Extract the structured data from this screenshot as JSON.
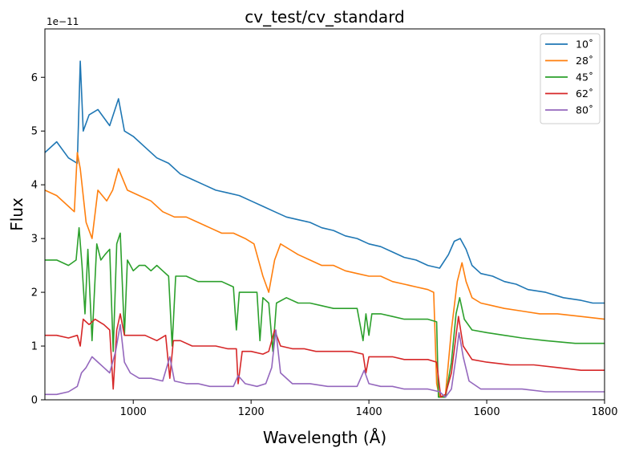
{
  "chart_data": {
    "type": "line",
    "title": "cv_test/cv_standard",
    "xlabel": "Wavelength (Å)",
    "ylabel": "Flux",
    "xlim": [
      850,
      1800
    ],
    "ylim": [
      0,
      6.9
    ],
    "y_scale_label": "1e−11",
    "xticks": [
      "1000",
      "1200",
      "1400",
      "1600",
      "1800"
    ],
    "xtick_values": [
      1000,
      1200,
      1400,
      1600,
      1800
    ],
    "yticks": [
      "0",
      "1",
      "2",
      "3",
      "4",
      "5",
      "6"
    ],
    "ytick_values": [
      0,
      1,
      2,
      3,
      4,
      5,
      6
    ],
    "grid": false,
    "legend_position": "top-right",
    "series": [
      {
        "name": "10˚",
        "color": "#1f77b4",
        "points": [
          [
            850,
            4.6
          ],
          [
            870,
            4.8
          ],
          [
            890,
            4.5
          ],
          [
            905,
            4.4
          ],
          [
            910,
            6.3
          ],
          [
            915,
            5.0
          ],
          [
            925,
            5.3
          ],
          [
            940,
            5.4
          ],
          [
            960,
            5.1
          ],
          [
            975,
            5.6
          ],
          [
            985,
            5.0
          ],
          [
            1000,
            4.9
          ],
          [
            1020,
            4.7
          ],
          [
            1040,
            4.5
          ],
          [
            1060,
            4.4
          ],
          [
            1080,
            4.2
          ],
          [
            1100,
            4.1
          ],
          [
            1120,
            4.0
          ],
          [
            1140,
            3.9
          ],
          [
            1160,
            3.85
          ],
          [
            1180,
            3.8
          ],
          [
            1200,
            3.7
          ],
          [
            1220,
            3.6
          ],
          [
            1240,
            3.5
          ],
          [
            1260,
            3.4
          ],
          [
            1280,
            3.35
          ],
          [
            1300,
            3.3
          ],
          [
            1320,
            3.2
          ],
          [
            1340,
            3.15
          ],
          [
            1360,
            3.05
          ],
          [
            1380,
            3.0
          ],
          [
            1400,
            2.9
          ],
          [
            1420,
            2.85
          ],
          [
            1440,
            2.75
          ],
          [
            1460,
            2.65
          ],
          [
            1480,
            2.6
          ],
          [
            1500,
            2.5
          ],
          [
            1520,
            2.45
          ],
          [
            1535,
            2.7
          ],
          [
            1545,
            2.95
          ],
          [
            1555,
            3.0
          ],
          [
            1565,
            2.8
          ],
          [
            1575,
            2.5
          ],
          [
            1590,
            2.35
          ],
          [
            1610,
            2.3
          ],
          [
            1630,
            2.2
          ],
          [
            1650,
            2.15
          ],
          [
            1670,
            2.05
          ],
          [
            1700,
            2.0
          ],
          [
            1730,
            1.9
          ],
          [
            1760,
            1.85
          ],
          [
            1780,
            1.8
          ],
          [
            1800,
            1.8
          ]
        ]
      },
      {
        "name": "28˚",
        "color": "#ff7f0e",
        "points": [
          [
            850,
            3.9
          ],
          [
            870,
            3.8
          ],
          [
            890,
            3.6
          ],
          [
            900,
            3.5
          ],
          [
            905,
            4.6
          ],
          [
            910,
            4.3
          ],
          [
            920,
            3.3
          ],
          [
            930,
            3.0
          ],
          [
            940,
            3.9
          ],
          [
            955,
            3.7
          ],
          [
            965,
            3.9
          ],
          [
            975,
            4.3
          ],
          [
            990,
            3.9
          ],
          [
            1010,
            3.8
          ],
          [
            1030,
            3.7
          ],
          [
            1050,
            3.5
          ],
          [
            1070,
            3.4
          ],
          [
            1090,
            3.4
          ],
          [
            1110,
            3.3
          ],
          [
            1130,
            3.2
          ],
          [
            1150,
            3.1
          ],
          [
            1170,
            3.1
          ],
          [
            1190,
            3.0
          ],
          [
            1205,
            2.9
          ],
          [
            1220,
            2.3
          ],
          [
            1230,
            2.0
          ],
          [
            1240,
            2.6
          ],
          [
            1250,
            2.9
          ],
          [
            1265,
            2.8
          ],
          [
            1280,
            2.7
          ],
          [
            1300,
            2.6
          ],
          [
            1320,
            2.5
          ],
          [
            1340,
            2.5
          ],
          [
            1360,
            2.4
          ],
          [
            1380,
            2.35
          ],
          [
            1400,
            2.3
          ],
          [
            1420,
            2.3
          ],
          [
            1440,
            2.2
          ],
          [
            1460,
            2.15
          ],
          [
            1480,
            2.1
          ],
          [
            1500,
            2.05
          ],
          [
            1510,
            2.0
          ],
          [
            1515,
            0.3
          ],
          [
            1520,
            0.05
          ],
          [
            1530,
            0.1
          ],
          [
            1540,
            1.3
          ],
          [
            1550,
            2.2
          ],
          [
            1558,
            2.55
          ],
          [
            1565,
            2.2
          ],
          [
            1575,
            1.9
          ],
          [
            1590,
            1.8
          ],
          [
            1610,
            1.75
          ],
          [
            1630,
            1.7
          ],
          [
            1660,
            1.65
          ],
          [
            1690,
            1.6
          ],
          [
            1720,
            1.6
          ],
          [
            1760,
            1.55
          ],
          [
            1800,
            1.5
          ]
        ]
      },
      {
        "name": "45˚",
        "color": "#2ca02c",
        "points": [
          [
            850,
            2.6
          ],
          [
            870,
            2.6
          ],
          [
            890,
            2.5
          ],
          [
            903,
            2.6
          ],
          [
            908,
            3.2
          ],
          [
            913,
            2.5
          ],
          [
            918,
            1.6
          ],
          [
            923,
            2.8
          ],
          [
            930,
            1.1
          ],
          [
            938,
            2.9
          ],
          [
            945,
            2.6
          ],
          [
            952,
            2.7
          ],
          [
            960,
            2.8
          ],
          [
            966,
            0.9
          ],
          [
            972,
            2.9
          ],
          [
            978,
            3.1
          ],
          [
            985,
            1.2
          ],
          [
            990,
            2.6
          ],
          [
            1000,
            2.4
          ],
          [
            1010,
            2.5
          ],
          [
            1020,
            2.5
          ],
          [
            1030,
            2.4
          ],
          [
            1040,
            2.5
          ],
          [
            1050,
            2.4
          ],
          [
            1060,
            2.3
          ],
          [
            1066,
            1.0
          ],
          [
            1072,
            2.3
          ],
          [
            1090,
            2.3
          ],
          [
            1110,
            2.2
          ],
          [
            1130,
            2.2
          ],
          [
            1150,
            2.2
          ],
          [
            1170,
            2.1
          ],
          [
            1175,
            1.3
          ],
          [
            1180,
            2.0
          ],
          [
            1200,
            2.0
          ],
          [
            1210,
            2.0
          ],
          [
            1215,
            1.1
          ],
          [
            1220,
            1.9
          ],
          [
            1230,
            1.8
          ],
          [
            1237,
            0.9
          ],
          [
            1243,
            1.8
          ],
          [
            1260,
            1.9
          ],
          [
            1280,
            1.8
          ],
          [
            1300,
            1.8
          ],
          [
            1320,
            1.75
          ],
          [
            1340,
            1.7
          ],
          [
            1360,
            1.7
          ],
          [
            1380,
            1.7
          ],
          [
            1390,
            1.1
          ],
          [
            1395,
            1.6
          ],
          [
            1400,
            1.2
          ],
          [
            1405,
            1.6
          ],
          [
            1420,
            1.6
          ],
          [
            1440,
            1.55
          ],
          [
            1460,
            1.5
          ],
          [
            1480,
            1.5
          ],
          [
            1500,
            1.5
          ],
          [
            1515,
            1.45
          ],
          [
            1518,
            0.05
          ],
          [
            1530,
            0.05
          ],
          [
            1540,
            0.7
          ],
          [
            1548,
            1.6
          ],
          [
            1554,
            1.9
          ],
          [
            1562,
            1.5
          ],
          [
            1575,
            1.3
          ],
          [
            1600,
            1.25
          ],
          [
            1630,
            1.2
          ],
          [
            1660,
            1.15
          ],
          [
            1700,
            1.1
          ],
          [
            1750,
            1.05
          ],
          [
            1800,
            1.05
          ]
        ]
      },
      {
        "name": "62˚",
        "color": "#d62728",
        "points": [
          [
            850,
            1.2
          ],
          [
            870,
            1.2
          ],
          [
            890,
            1.15
          ],
          [
            905,
            1.2
          ],
          [
            910,
            1.0
          ],
          [
            915,
            1.5
          ],
          [
            925,
            1.4
          ],
          [
            935,
            1.5
          ],
          [
            950,
            1.4
          ],
          [
            960,
            1.3
          ],
          [
            966,
            0.2
          ],
          [
            972,
            1.3
          ],
          [
            978,
            1.6
          ],
          [
            985,
            1.2
          ],
          [
            1000,
            1.2
          ],
          [
            1020,
            1.2
          ],
          [
            1040,
            1.1
          ],
          [
            1055,
            1.2
          ],
          [
            1062,
            0.4
          ],
          [
            1068,
            1.1
          ],
          [
            1080,
            1.1
          ],
          [
            1100,
            1.0
          ],
          [
            1120,
            1.0
          ],
          [
            1140,
            1.0
          ],
          [
            1160,
            0.95
          ],
          [
            1175,
            0.95
          ],
          [
            1178,
            0.3
          ],
          [
            1185,
            0.9
          ],
          [
            1200,
            0.9
          ],
          [
            1220,
            0.85
          ],
          [
            1230,
            0.9
          ],
          [
            1240,
            1.3
          ],
          [
            1250,
            1.0
          ],
          [
            1270,
            0.95
          ],
          [
            1290,
            0.95
          ],
          [
            1310,
            0.9
          ],
          [
            1330,
            0.9
          ],
          [
            1350,
            0.9
          ],
          [
            1370,
            0.9
          ],
          [
            1390,
            0.85
          ],
          [
            1395,
            0.5
          ],
          [
            1400,
            0.8
          ],
          [
            1420,
            0.8
          ],
          [
            1440,
            0.8
          ],
          [
            1460,
            0.75
          ],
          [
            1480,
            0.75
          ],
          [
            1500,
            0.75
          ],
          [
            1515,
            0.7
          ],
          [
            1522,
            0.05
          ],
          [
            1530,
            0.1
          ],
          [
            1540,
            0.5
          ],
          [
            1548,
            1.2
          ],
          [
            1552,
            1.55
          ],
          [
            1560,
            1.0
          ],
          [
            1575,
            0.75
          ],
          [
            1600,
            0.7
          ],
          [
            1640,
            0.65
          ],
          [
            1680,
            0.65
          ],
          [
            1720,
            0.6
          ],
          [
            1760,
            0.55
          ],
          [
            1800,
            0.55
          ]
        ]
      },
      {
        "name": "80˚",
        "color": "#9467bd",
        "points": [
          [
            850,
            0.1
          ],
          [
            870,
            0.1
          ],
          [
            890,
            0.15
          ],
          [
            905,
            0.25
          ],
          [
            912,
            0.5
          ],
          [
            920,
            0.6
          ],
          [
            930,
            0.8
          ],
          [
            940,
            0.7
          ],
          [
            950,
            0.6
          ],
          [
            960,
            0.5
          ],
          [
            970,
            0.9
          ],
          [
            978,
            1.4
          ],
          [
            985,
            0.7
          ],
          [
            995,
            0.5
          ],
          [
            1010,
            0.4
          ],
          [
            1030,
            0.4
          ],
          [
            1050,
            0.35
          ],
          [
            1062,
            0.8
          ],
          [
            1070,
            0.35
          ],
          [
            1090,
            0.3
          ],
          [
            1110,
            0.3
          ],
          [
            1130,
            0.25
          ],
          [
            1150,
            0.25
          ],
          [
            1170,
            0.25
          ],
          [
            1178,
            0.45
          ],
          [
            1190,
            0.3
          ],
          [
            1210,
            0.25
          ],
          [
            1225,
            0.3
          ],
          [
            1235,
            0.6
          ],
          [
            1242,
            1.3
          ],
          [
            1250,
            0.5
          ],
          [
            1270,
            0.3
          ],
          [
            1300,
            0.3
          ],
          [
            1330,
            0.25
          ],
          [
            1360,
            0.25
          ],
          [
            1380,
            0.25
          ],
          [
            1392,
            0.55
          ],
          [
            1400,
            0.3
          ],
          [
            1420,
            0.25
          ],
          [
            1440,
            0.25
          ],
          [
            1460,
            0.2
          ],
          [
            1480,
            0.2
          ],
          [
            1500,
            0.2
          ],
          [
            1520,
            0.15
          ],
          [
            1530,
            0.05
          ],
          [
            1540,
            0.2
          ],
          [
            1548,
            0.8
          ],
          [
            1553,
            1.25
          ],
          [
            1560,
            0.8
          ],
          [
            1570,
            0.35
          ],
          [
            1590,
            0.2
          ],
          [
            1620,
            0.2
          ],
          [
            1660,
            0.2
          ],
          [
            1700,
            0.15
          ],
          [
            1750,
            0.15
          ],
          [
            1800,
            0.15
          ]
        ]
      }
    ]
  }
}
